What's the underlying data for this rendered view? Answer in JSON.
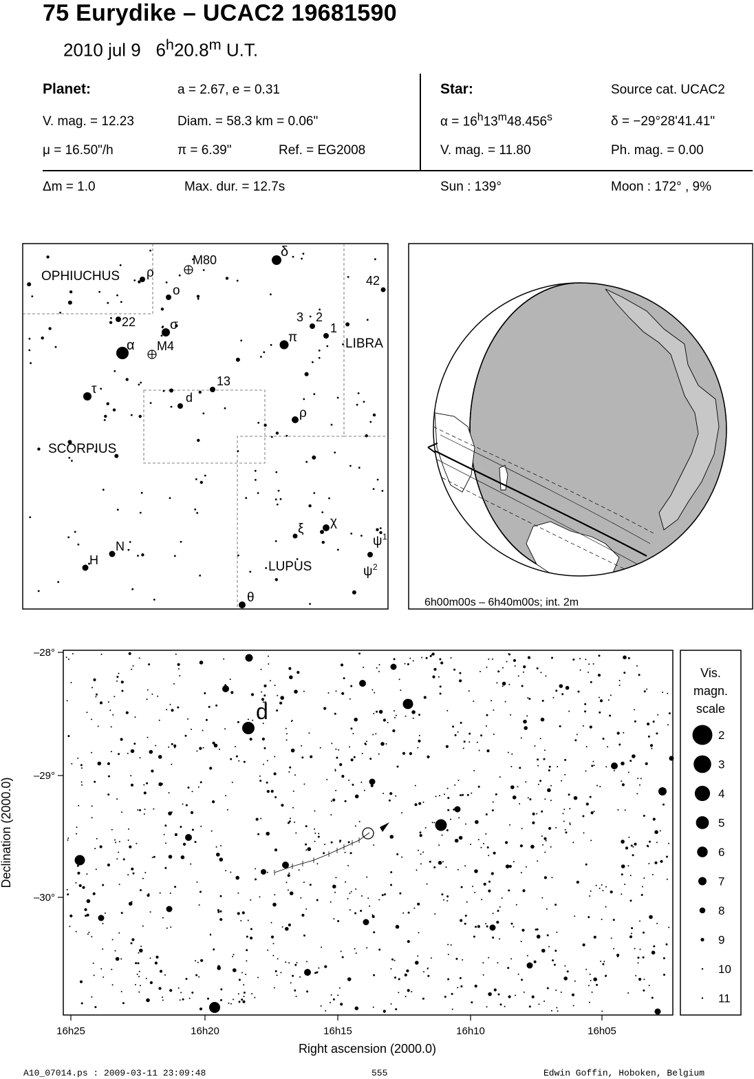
{
  "header": {
    "title": "75 Eurydike  –  UCAC2 19681590",
    "date": "2010 jul  9",
    "time_h": "6",
    "time_h_unit": "h",
    "time_m": "20.8",
    "time_m_unit": "m",
    "time_suffix": " U.T."
  },
  "planet": {
    "heading": "Planet:",
    "orbit": "a = 2.67, e = 0.31",
    "vmag": "V. mag. = 12.23",
    "diam": "Diam. = 58.3 km = 0.06\"",
    "mu": "μ =  16.50\"/h",
    "pi": "π =  6.39\"",
    "ref": "Ref. = EG2008"
  },
  "star": {
    "heading": "Star:",
    "source": "Source cat.  UCAC2",
    "ra_prefix": "α = 16",
    "ra_h": "h",
    "ra_min": "13",
    "ra_m": "m",
    "ra_sec": "48.456",
    "ra_s": "s",
    "dec": "δ = −29°28'41.41\"",
    "vmag": "V. mag. = 11.80",
    "phmag": "Ph. mag. =  0.00"
  },
  "event": {
    "dm": "Δm = 1.0",
    "maxdur": "Max. dur. = 12.7s",
    "sun": "Sun : 139°",
    "moon": "Moon : 172° ,  9%"
  },
  "finder": {
    "constellations": [
      "OPHIUCHUS",
      "SCORPIUS",
      "LIBRA",
      "LUPUS"
    ],
    "labels": [
      "M80",
      "δ",
      "ρ",
      "o",
      "42",
      "22",
      "σ",
      "3",
      "2",
      "1",
      "α",
      "M4",
      "π",
      "τ",
      "13",
      "d",
      "ρ",
      "ξ",
      "χ",
      "ψ",
      "1",
      "N",
      "H",
      "ψ",
      "2",
      "θ"
    ]
  },
  "globe": {
    "caption": "6h00m00s –  6h40m00s; int.  2m"
  },
  "chart_data": {
    "type": "scatter",
    "title": "",
    "xlabel": "Right ascension (2000.0)",
    "ylabel": "Declination (2000.0)",
    "x_ticks": [
      "16h25",
      "16h20",
      "16h15",
      "16h10",
      "16h05"
    ],
    "y_ticks": [
      "–28°",
      "–29°",
      "–30°"
    ],
    "label_d": "d",
    "legend_title": [
      "Vis.",
      "magn.",
      "scale"
    ],
    "legend_mags": [
      "2",
      "3",
      "4",
      "5",
      "6",
      "7",
      "8",
      "9",
      "10",
      "11"
    ],
    "target": {
      "ra": "16h13m48.456s",
      "dec": "−29°28'41.41\""
    }
  },
  "footer": {
    "left": "A10_07014.ps : 2009-03-11 23:09:48",
    "center": "555",
    "right": "Edwin Goffin, Hoboken, Belgium"
  }
}
